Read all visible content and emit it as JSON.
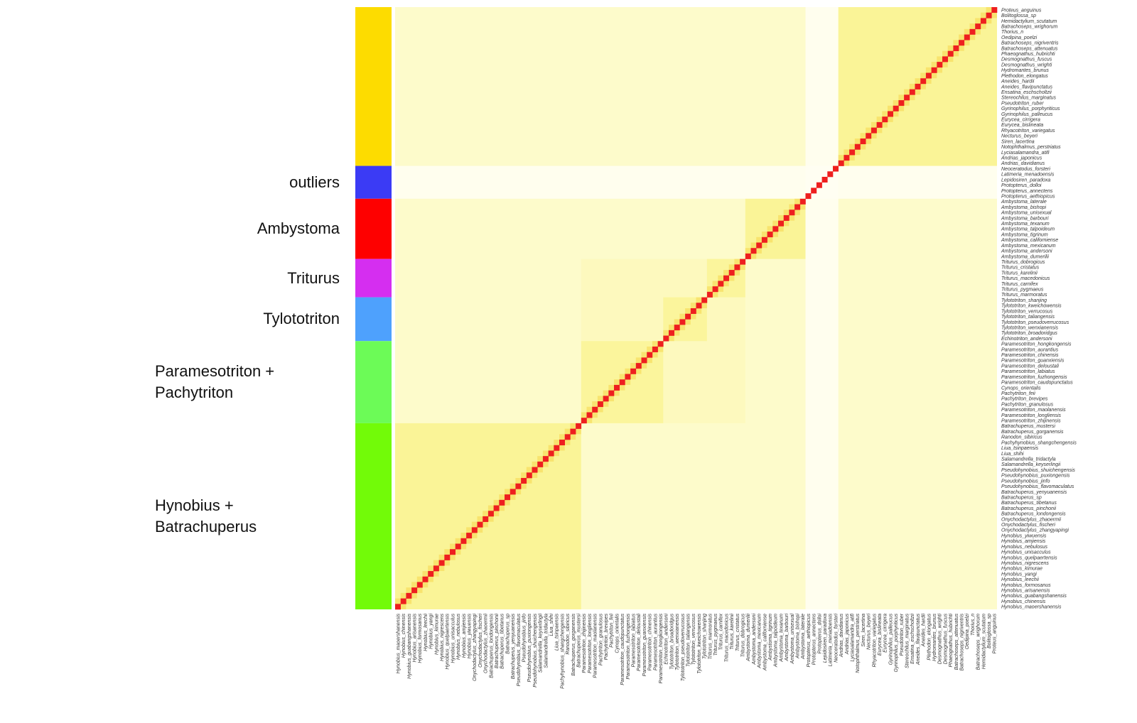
{
  "chart_data": {
    "type": "heatmap",
    "title": "",
    "xlabel": "",
    "ylabel": "",
    "diagonal_color": "#ee1f1f",
    "color_scale": [
      "#fffef2",
      "#fdfbcb",
      "#fbf6a6",
      "#f7ee6d",
      "#f6d54c",
      "#f3a23a",
      "#ee1f1f"
    ],
    "groups": [
      {
        "label": "",
        "color": "#fddc00",
        "count": 29
      },
      {
        "label": "outliers",
        "color": "#3b3bf5",
        "count": 6
      },
      {
        "label": "Ambystoma",
        "color": "#fe0000",
        "count": 11
      },
      {
        "label": "Triturus",
        "color": "#d52ef0",
        "count": 7
      },
      {
        "label": "Tylototriton",
        "color": "#4ea1fd",
        "count": 8
      },
      {
        "label": "Paramesotriton + Pachytriton",
        "color": "#6cfb57",
        "count": 15
      },
      {
        "label": "Hynobius + Batrachuperus",
        "color": "#72fb08",
        "count": 34
      }
    ],
    "row_labels": [
      "Proteus_anguinus",
      "Bolitoglossa_sp",
      "Hemidactylium_scutatum",
      "Batrachoseps_wrighorum",
      "Thorius_n",
      "Oedipina_poelzi",
      "Batrachoseps_nigriventris",
      "Batrachoseps_attenuatus",
      "Phaeognathus_hubrichti",
      "Desmognathus_fuscus",
      "Desmognathus_wrighti",
      "Hydromantes_brunus",
      "Plethodon_elongatus",
      "Aneides_hardii",
      "Aneides_flavipunctatus",
      "Ensatina_eschscholtzii",
      "Stereochilus_marginatus",
      "Pseudotriton_ruber",
      "Gyrinophilus_porphyriticus",
      "Gyrinophilus_palleucus",
      "Eurycea_cirrigera",
      "Eurycea_bislineata",
      "Rhyacotriton_variegatus",
      "Necturus_beyeri",
      "Siren_lacertina",
      "Notophthalmus_perstriatus",
      "Lyciasalamandra_atifi",
      "Andrias_japonicus",
      "Andrias_davidianus",
      "Neoceratodus_forsteri",
      "Latimeria_menadoensis",
      "Lepidosiren_paradoxa",
      "Protopterus_dolloi",
      "Protopterus_annectens",
      "Protopterus_aethiopicus",
      "Ambystoma_laterale",
      "Ambystoma_bishopi",
      "Ambystoma_unisexual",
      "Ambystoma_barbouri",
      "Ambystoma_texanum",
      "Ambystoma_talpoideum",
      "Ambystoma_tigrinum",
      "Ambystoma_californiense",
      "Ambystoma_mexicanum",
      "Ambystoma_andersoni",
      "Ambystoma_dumerilii",
      "Triturus_dobrogicus",
      "Triturus_cristatus",
      "Triturus_karelinii",
      "Triturus_macedonicus",
      "Triturus_carnifex",
      "Triturus_pygmaeus",
      "Triturus_marmoratus",
      "Tylototriton_shanjing",
      "Tylototriton_kweichowensis",
      "Tylototriton_verrucosus",
      "Tylototriton_taliangensis",
      "Tylototriton_pseudoverrucosus",
      "Tylototriton_wenxianensis",
      "Tylototriton_broadoridgus",
      "Echinotriton_andersoni",
      "Paramesotriton_hongkongensis",
      "Paramesotriton_aurantius",
      "Paramesotriton_chinensis",
      "Paramesotriton_guanxiensis",
      "Paramesotriton_deloustali",
      "Paramesotriton_labiatus",
      "Paramesotriton_fuzhongensis",
      "Paramesotriton_caudopunctatus",
      "Cynops_orientalis",
      "Pachytriton_feii",
      "Pachytriton_brevipes",
      "Pachytriton_granulosus",
      "Paramesotriton_maolanensis",
      "Paramesotriton_longliensis",
      "Paramesotriton_zhijinensis",
      "Batrachuperus_mustersi",
      "Batrachuperus_gorganensis",
      "Ranodon_sibiricus",
      "Pachyhynobius_shangchengensis",
      "Liua_tsinpaensis",
      "Liua_shihi",
      "Salamandrella_tridactyla",
      "Salamandrella_keyserlingii",
      "Pseudohynobius_shuichengensis",
      "Pseudohynobius_puxiongensis",
      "Pseudohynobius_jinfo",
      "Pseudohynobius_flavomaculatus",
      "Batrachuperus_yenyuanensis",
      "Batrachuperus_sp",
      "Batrachuperus_tibetanus",
      "Batrachuperus_pinchonii",
      "Batrachuperus_londongensis",
      "Onychodactylus_zhaoermii",
      "Onychodactylus_fischeri",
      "Onychodactylus_zhangyapingi",
      "Hynobius_yiwuensis",
      "Hynobius_amjiensis",
      "Hynobius_nebulosus",
      "Hynobius_unisacculus",
      "Hynobius_quelpaertensis",
      "Hynobius_nigrescens",
      "Hynobius_kimurae",
      "Hynobius_yangi",
      "Hynobius_leechii",
      "Hynobius_formosanus",
      "Hynobius_arisanensis",
      "Hynobius_guabangshanensis",
      "Hynobius_chinensis",
      "Hynobius_maoershanensis"
    ],
    "column_labels": [
      "Hynobius_maoershanensis",
      "Hynobius_chinensis",
      "Hynobius_guabangshanensis",
      "Hynobius_arisanensis",
      "Hynobius_formosanus",
      "Hynobius_leechii",
      "Hynobius_yangi",
      "Hynobius_kimurae",
      "Hynobius_nigrescens",
      "Hynobius_quelpaertensis",
      "Hynobius_unisacculus",
      "Hynobius_nebulosus",
      "Hynobius_amjiensis",
      "Hynobius_yiwuensis",
      "Onychodactylus_zhangyapingi",
      "Onychodactylus_fischeri",
      "Onychodactylus_zhaoermii",
      "Batrachuperus_londongensis",
      "Batrachuperus_pinchonii",
      "Batrachuperus_tibetanus",
      "Batrachuperus_sp",
      "Batrachuperus_yenyuanensis",
      "Pseudohynobius_flavomaculatus",
      "Pseudohynobius_jinfo",
      "Pseudohynobius_puxiongensis",
      "Pseudohynobius_shuichengensis",
      "Salamandrella_keyserlingii",
      "Salamandrella_tridactyla",
      "Liua_shihi",
      "Liua_tsinpaensis",
      "Pachyhynobius_shangchengensis",
      "Ranodon_sibiricus",
      "Batrachuperus_gorganensis",
      "Batrachuperus_mustersi",
      "Paramesotriton_zhijinensis",
      "Paramesotriton_longliensis",
      "Paramesotriton_maolanensis",
      "Pachytriton_granulosus",
      "Pachytriton_brevipes",
      "Pachytriton_feii",
      "Cynops_orientalis",
      "Paramesotriton_caudopunctatus",
      "Paramesotriton_fuzhongensis",
      "Paramesotriton_labiatus",
      "Paramesotriton_deloustali",
      "Paramesotriton_guanxiensis",
      "Paramesotriton_chinensis",
      "Paramesotriton_aurantius",
      "Paramesotriton_hongkongensis",
      "Echinotriton_andersoni",
      "Tylototriton_broadoridgus",
      "Tylototriton_wenxianensis",
      "Tylototriton_pseudoverrucosus",
      "Tylototriton_taliangensis",
      "Tylototriton_verrucosus",
      "Tylototriton_kweichowensis",
      "Tylototriton_shanjing",
      "Triturus_marmoratus",
      "Triturus_pygmaeus",
      "Triturus_carnifex",
      "Triturus_macedonicus",
      "Triturus_karelinii",
      "Triturus_cristatus",
      "Triturus_dobrogicus",
      "Ambystoma_dumerilii",
      "Ambystoma_andersoni",
      "Ambystoma_mexicanum",
      "Ambystoma_californiense",
      "Ambystoma_tigrinum",
      "Ambystoma_talpoideum",
      "Ambystoma_texanum",
      "Ambystoma_barbouri",
      "Ambystoma_unisexual",
      "Ambystoma_bishopi",
      "Ambystoma_laterale",
      "Protopterus_aethiopicus",
      "Protopterus_annectens",
      "Protopterus_dolloi",
      "Lepidosiren_paradoxa",
      "Latimeria_menadoensis",
      "Neoceratodus_forsteri",
      "Andrias_davidianus",
      "Andrias_japonicus",
      "Lyciasalamandra_atifi",
      "Notophthalmus_perstriatus",
      "Siren_lacertina",
      "Necturus_beyeri",
      "Rhyacotriton_variegatus",
      "Eurycea_bislineata",
      "Eurycea_cirrigera",
      "Gyrinophilus_palleucus",
      "Gyrinophilus_porphyriticus",
      "Pseudotriton_ruber",
      "Stereochilus_marginatus",
      "Ensatina_eschscholtzii",
      "Aneides_flavipunctatus",
      "Aneides_hardii",
      "Plethodon_elongatus",
      "Hydromantes_brunus",
      "Desmognathus_wrighti",
      "Desmognathus_fuscus",
      "Phaeognathus_hubrichti",
      "Batrachoseps_attenuatus",
      "Batrachoseps_nigriventris",
      "Oedipina_poelzi",
      "Thorius_n",
      "Batrachoseps_wrighorum",
      "Hemidactylium_scutatum",
      "Bolitoglossa_sp",
      "Proteus_anguinus"
    ]
  }
}
